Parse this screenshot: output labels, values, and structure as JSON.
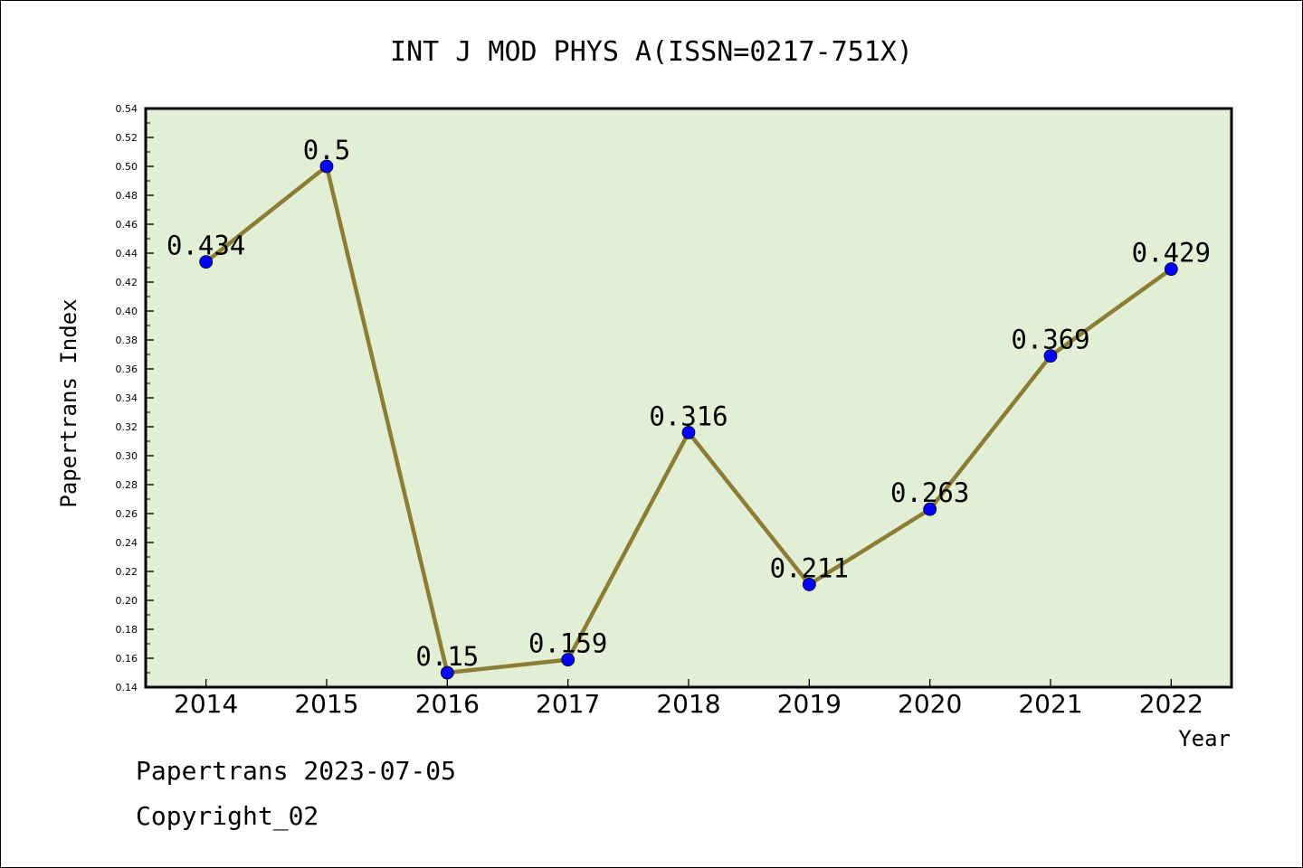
{
  "chart_data": {
    "type": "line",
    "title": "INT J MOD PHYS A(ISSN=0217-751X)",
    "xlabel": "Year",
    "ylabel": "Papertrans Index",
    "categories": [
      "2014",
      "2015",
      "2016",
      "2017",
      "2018",
      "2019",
      "2020",
      "2021",
      "2022"
    ],
    "values": [
      0.434,
      0.5,
      0.15,
      0.159,
      0.316,
      0.211,
      0.263,
      0.369,
      0.429
    ],
    "data_labels": [
      "0.434",
      "0.5",
      "0.15",
      "0.159",
      "0.316",
      "0.211",
      "0.263",
      "0.369",
      "0.429"
    ],
    "ylim": [
      0.14,
      0.54
    ],
    "y_ticks": [
      "0.14",
      "0.16",
      "0.18",
      "0.20",
      "0.22",
      "0.24",
      "0.26",
      "0.28",
      "0.30",
      "0.32",
      "0.34",
      "0.36",
      "0.38",
      "0.40",
      "0.42",
      "0.44",
      "0.46",
      "0.48",
      "0.50",
      "0.52",
      "0.54"
    ],
    "grid": false,
    "colors": {
      "plot_background": "#e2efd4",
      "line": "#8b7d35",
      "marker": "#0000ff"
    }
  },
  "footer": {
    "line1": "Papertrans 2023-07-05",
    "line2": "Copyright_02"
  }
}
